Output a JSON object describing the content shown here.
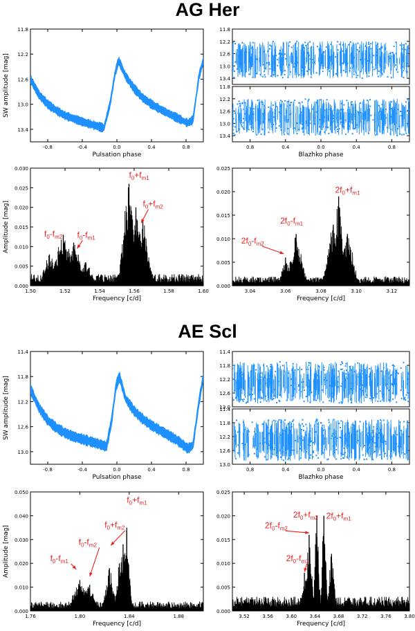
{
  "titles": [
    "AG Her",
    "AE Scl"
  ],
  "colors": {
    "phase": "#1e90ff",
    "ft": "#000000",
    "ann": "#ee1c1c"
  },
  "chart_data": [
    {
      "id": "ag-phase",
      "type": "scatter",
      "style": "band",
      "xlabel": "Pulsation phase",
      "ylabel": "SW amplitude [mag]",
      "xlim": [
        -1,
        1
      ],
      "ylim": [
        13.6,
        11.8
      ],
      "y_inverted": true,
      "xticks": [
        -0.8,
        -0.4,
        0.0,
        0.4,
        0.8
      ],
      "xticklabels": [
        "-0.8",
        "-0.4",
        "0.0",
        "0.4",
        "0.8"
      ],
      "yticks": [
        11.8,
        12.2,
        12.6,
        13.0,
        13.4
      ],
      "yticklabels": [
        "11.8",
        "12.2",
        "12.6",
        "13.0",
        "13.4"
      ],
      "x": [
        -1.0,
        -0.9,
        -0.8,
        -0.7,
        -0.6,
        -0.5,
        -0.4,
        -0.3,
        -0.2,
        -0.15,
        -0.08,
        -0.02,
        0.02,
        0.1,
        0.2,
        0.3,
        0.4,
        0.5,
        0.6,
        0.7,
        0.82,
        0.88,
        0.95,
        1.0
      ],
      "y": [
        12.6,
        12.85,
        13.0,
        13.1,
        13.18,
        13.23,
        13.28,
        13.32,
        13.36,
        13.38,
        13.0,
        12.5,
        12.3,
        12.55,
        12.75,
        12.9,
        13.0,
        13.08,
        13.15,
        13.22,
        13.3,
        13.25,
        12.55,
        12.3
      ],
      "spread": 0.06
    },
    {
      "id": "ag-blazhko-top",
      "type": "scatter",
      "style": "noise",
      "xlim": [
        -1,
        1
      ],
      "ylim": [
        13.6,
        11.8
      ],
      "y_inverted": true,
      "yticks": [
        11.8,
        12.2,
        12.6,
        13.0,
        13.4
      ],
      "yticklabels": [
        "11.8",
        "12.2",
        "12.6",
        "13.0",
        "13.4"
      ],
      "band_y": [
        12.2,
        13.4
      ]
    },
    {
      "id": "ag-blazhko-bot",
      "type": "scatter",
      "style": "noise",
      "xlabel": "Blazhko phase",
      "xlim": [
        -1,
        1
      ],
      "ylim": [
        13.6,
        11.8
      ],
      "y_inverted": true,
      "xticks": [
        -0.8,
        -0.4,
        0.0,
        0.4,
        0.8
      ],
      "xticklabels": [
        "0.8",
        "0.4",
        "0.0",
        "0.4",
        "0.8"
      ],
      "yticks": [
        11.8,
        12.2,
        12.6,
        13.0,
        13.4
      ],
      "yticklabels": [
        "11.8",
        "12.2",
        "12.6",
        "13.0",
        "13.4"
      ],
      "band_y": [
        12.2,
        13.4
      ]
    },
    {
      "id": "ag-ft1",
      "type": "line",
      "style": "spectrum",
      "xlabel": "Frequency [c/d]",
      "ylabel": "Amplitude [mag]",
      "xlim": [
        1.5,
        1.6
      ],
      "ylim": [
        0,
        0.03
      ],
      "xticks": [
        1.5,
        1.52,
        1.54,
        1.56,
        1.58,
        1.6
      ],
      "xticklabels": [
        "1.50",
        "1.52",
        "1.54",
        "1.56",
        "1.58",
        "1.60"
      ],
      "yticks": [
        0,
        0.005,
        0.01,
        0.015,
        0.02,
        0.025,
        0.03
      ],
      "yticklabels": [
        "0.000",
        "0.005",
        "0.010",
        "0.015",
        "0.020",
        "0.025",
        "0.030"
      ],
      "peaks": [
        [
          1.511,
          0.008,
          0.003
        ],
        [
          1.519,
          0.013,
          0.004
        ],
        [
          1.525,
          0.011,
          0.004
        ],
        [
          1.532,
          0.006,
          0.003
        ],
        [
          1.557,
          0.026,
          0.003
        ],
        [
          1.561,
          0.02,
          0.002
        ],
        [
          1.565,
          0.017,
          0.003
        ]
      ],
      "noise": 0.003,
      "annotations": [
        {
          "base": "f",
          "sub": "0",
          "op": "-f",
          "sub2": "m2",
          "lx": 1.508,
          "ly": 0.0125,
          "ax": 1.509,
          "ay": 0.012
        },
        {
          "base": "f",
          "sub": "0",
          "op": "-f",
          "sub2": "m1",
          "lx": 1.527,
          "ly": 0.0123,
          "ax": 1.527,
          "ay": 0.0095,
          "arrow": true
        },
        {
          "base": "f",
          "sub": "0",
          "op": "+f",
          "sub2": "m1",
          "lx": 1.557,
          "ly": 0.0275,
          "ax": 1.557,
          "ay": 0.027
        },
        {
          "base": "f",
          "sub": "0",
          "op": "+f",
          "sub2": "m2",
          "lx": 1.565,
          "ly": 0.0202,
          "ax": 1.564,
          "ay": 0.016,
          "arrow": true
        }
      ]
    },
    {
      "id": "ag-ft2",
      "type": "line",
      "style": "spectrum",
      "xlabel": "Frequency [c/d]",
      "xlim": [
        3.03,
        3.13
      ],
      "ylim": [
        0,
        0.025
      ],
      "xticks": [
        3.04,
        3.06,
        3.08,
        3.1,
        3.12
      ],
      "xticklabels": [
        "3.04",
        "3.06",
        "3.08",
        "3.10",
        "3.12"
      ],
      "yticks": [
        0,
        0.005,
        0.01,
        0.015,
        0.02,
        0.025
      ],
      "yticklabels": [
        "0.000",
        "0.005",
        "0.010",
        "0.015",
        "0.020",
        "0.025"
      ],
      "peaks": [
        [
          3.06,
          0.006,
          0.002
        ],
        [
          3.066,
          0.011,
          0.003
        ],
        [
          3.09,
          0.019,
          0.002
        ],
        [
          3.087,
          0.013,
          0.003
        ],
        [
          3.095,
          0.011,
          0.003
        ]
      ],
      "noise": 0.002,
      "annotations": [
        {
          "base": "2f",
          "sub": "0",
          "op": "-f",
          "sub2": "m2",
          "lx": 3.035,
          "ly": 0.009,
          "ax": 3.059,
          "ay": 0.0068,
          "arrow": true
        },
        {
          "base": "2f",
          "sub": "0",
          "op": "-f",
          "sub2": "m1",
          "lx": 3.057,
          "ly": 0.0132,
          "ax": 3.063,
          "ay": 0.012
        },
        {
          "base": "2f",
          "sub": "0",
          "op": "+f",
          "sub2": "m1",
          "lx": 3.088,
          "ly": 0.0198,
          "ax": 3.09,
          "ay": 0.02
        }
      ]
    },
    {
      "id": "ae-phase",
      "type": "scatter",
      "style": "band",
      "xlabel": "Pulsation phase",
      "ylabel": "SW amplitude [mag]",
      "xlim": [
        -1,
        1
      ],
      "ylim": [
        13.2,
        11.4
      ],
      "y_inverted": true,
      "xticks": [
        -0.8,
        -0.4,
        0.0,
        0.4,
        0.8
      ],
      "xticklabels": [
        "-0.8",
        "-0.4",
        "0.0",
        "0.4",
        "0.8"
      ],
      "yticks": [
        11.4,
        11.8,
        12.2,
        12.6,
        13.0
      ],
      "yticklabels": [
        "11.4",
        "11.8",
        "12.2",
        "12.6",
        "13.0"
      ],
      "x": [
        -1.0,
        -0.9,
        -0.8,
        -0.7,
        -0.6,
        -0.5,
        -0.4,
        -0.3,
        -0.2,
        -0.12,
        -0.06,
        -0.01,
        0.03,
        0.1,
        0.2,
        0.3,
        0.4,
        0.5,
        0.6,
        0.7,
        0.82,
        0.88,
        0.95,
        1.0
      ],
      "y": [
        12.0,
        12.3,
        12.5,
        12.62,
        12.7,
        12.76,
        12.8,
        12.84,
        12.88,
        12.92,
        12.5,
        11.95,
        11.8,
        12.15,
        12.35,
        12.48,
        12.58,
        12.66,
        12.74,
        12.82,
        12.95,
        12.9,
        12.2,
        11.8
      ],
      "spread": 0.07
    },
    {
      "id": "ae-blazhko-top",
      "type": "scatter",
      "style": "noise",
      "xlim": [
        -1,
        1
      ],
      "ylim": [
        13.0,
        11.4
      ],
      "y_inverted": true,
      "yticks": [
        11.4,
        11.8,
        12.2,
        12.6,
        13.0
      ],
      "yticklabels": [
        "11.4",
        "11.8",
        "12.2",
        "12.6",
        "13.0"
      ],
      "band_y": [
        11.7,
        12.9
      ]
    },
    {
      "id": "ae-blazhko-bot",
      "type": "scatter",
      "style": "noise",
      "xlabel": "Blazhko phase",
      "xlim": [
        -1,
        1
      ],
      "ylim": [
        13.0,
        11.4
      ],
      "y_inverted": true,
      "xticks": [
        -0.8,
        -0.4,
        0.0,
        0.4,
        0.8
      ],
      "xticklabels": [
        "0.8",
        "0.4",
        "0.0",
        "0.4",
        "0.8"
      ],
      "yticks": [
        11.4,
        11.8,
        12.2,
        12.6,
        13.0
      ],
      "yticklabels": [
        "11.4",
        "11.8",
        "12.2",
        "12.6",
        "13.0"
      ],
      "band_y": [
        11.7,
        12.9
      ]
    },
    {
      "id": "ae-ft1",
      "type": "line",
      "style": "spectrum",
      "xlabel": "Frequency [c/d]",
      "ylabel": "Amplitude [mag]",
      "xlim": [
        1.76,
        1.9
      ],
      "ylim": [
        0,
        0.05
      ],
      "xticks": [
        1.76,
        1.8,
        1.84,
        1.88
      ],
      "xticklabels": [
        "1.76",
        "1.80",
        "1.84",
        "1.88"
      ],
      "yticks": [
        0,
        0.01,
        0.02,
        0.03,
        0.04,
        0.05
      ],
      "yticklabels": [
        "0.000",
        "0.010",
        "0.020",
        "0.030",
        "0.040",
        "0.050"
      ],
      "peaks": [
        [
          1.8,
          0.013,
          0.005
        ],
        [
          1.808,
          0.011,
          0.004
        ],
        [
          1.824,
          0.018,
          0.003
        ],
        [
          1.838,
          0.035,
          0.002
        ],
        [
          1.835,
          0.028,
          0.002
        ],
        [
          1.832,
          0.02,
          0.002
        ]
      ],
      "noise": 0.004,
      "annotations": [
        {
          "base": "f",
          "sub": "0",
          "op": "-f",
          "sub2": "m1",
          "lx": 1.776,
          "ly": 0.021,
          "ax": 1.797,
          "ay": 0.0175,
          "arrow": true
        },
        {
          "base": "f",
          "sub": "0",
          "op": "-f",
          "sub2": "m2",
          "lx": 1.799,
          "ly": 0.0278,
          "ax": 1.808,
          "ay": 0.0145,
          "arrow": true
        },
        {
          "base": "f",
          "sub": "0",
          "op": "+f",
          "sub2": "m2",
          "lx": 1.82,
          "ly": 0.035,
          "ax": 1.825,
          "ay": 0.0275,
          "arrow": true
        },
        {
          "base": "f",
          "sub": "0",
          "op": "+f",
          "sub2": "m1",
          "lx": 1.838,
          "ly": 0.0455,
          "ax": 1.838,
          "ay": 0.045
        }
      ]
    },
    {
      "id": "ae-ft2",
      "type": "line",
      "style": "spectrum",
      "xlabel": "Frequency [c/d]",
      "xlim": [
        3.5,
        3.8
      ],
      "ylim": [
        0,
        0.025
      ],
      "xticks": [
        3.52,
        3.56,
        3.6,
        3.64,
        3.68,
        3.72,
        3.76,
        3.8
      ],
      "xticklabels": [
        "3.52",
        "3.56",
        "3.60",
        "3.64",
        "3.68",
        "3.72",
        "3.76",
        "3.80"
      ],
      "yticks": [
        0,
        0.005,
        0.01,
        0.015,
        0.02,
        0.025
      ],
      "yticklabels": [
        "0.000",
        "0.005",
        "0.010",
        "0.015",
        "0.020",
        "0.025"
      ],
      "peaks": [
        [
          3.622,
          0.008,
          0.004
        ],
        [
          3.63,
          0.016,
          0.004
        ],
        [
          3.643,
          0.02,
          0.003
        ],
        [
          3.655,
          0.02,
          0.003
        ],
        [
          3.668,
          0.012,
          0.004
        ]
      ],
      "noise": 0.003,
      "annotations": [
        {
          "base": "2f",
          "sub": "0",
          "op": "-f",
          "sub2": "m2",
          "lx": 3.555,
          "ly": 0.0174,
          "ax": 3.63,
          "ay": 0.0164,
          "arrow": true
        },
        {
          "base": "2f",
          "sub": "0",
          "op": "+f",
          "sub2": "m2",
          "lx": 3.603,
          "ly": 0.0196,
          "ax": 3.643,
          "ay": 0.0195
        },
        {
          "base": "2f",
          "sub": "0",
          "op": "+f",
          "sub2": "m1",
          "lx": 3.659,
          "ly": 0.0194,
          "ax": 3.655,
          "ay": 0.0195
        },
        {
          "base": "2f",
          "sub": "0",
          "op": "-f",
          "sub2": "m1",
          "lx": 3.591,
          "ly": 0.0105,
          "ax": 3.622,
          "ay": 0.0082,
          "arrow": true
        }
      ]
    }
  ]
}
